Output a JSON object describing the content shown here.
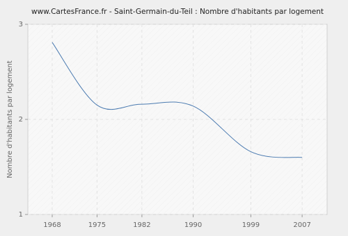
{
  "chart_data": {
    "type": "line",
    "title": "www.CartesFrance.fr - Saint-Germain-du-Teil : Nombre d'habitants par logement",
    "y_label": "Nombre d'habitants par logement",
    "x": [
      1968,
      1975,
      1982,
      1990,
      1999,
      2007
    ],
    "series": [
      {
        "name": "Nombre d'habitants par logement",
        "color": "#4a7ab0",
        "values": [
          2.81,
          2.15,
          2.16,
          2.14,
          1.66,
          1.6
        ]
      }
    ],
    "xlim": [
      1964.2,
      2010.9
    ],
    "xticks": [
      1968,
      1975,
      1982,
      1990,
      1999,
      2007
    ],
    "ylim": [
      1,
      3
    ],
    "yticks": [
      1,
      2,
      3
    ],
    "grid": true
  }
}
